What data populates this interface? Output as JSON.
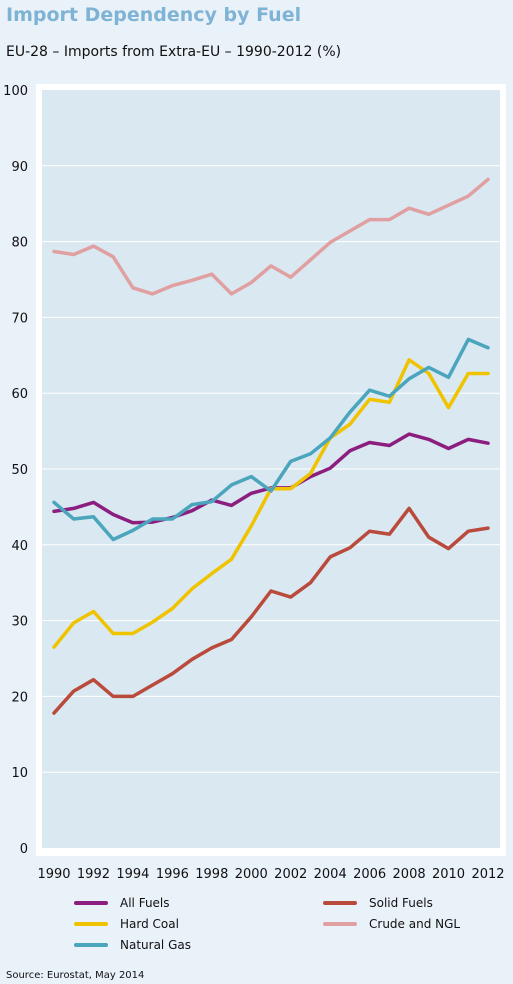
{
  "header": {
    "title": "Import Dependency by Fuel",
    "subtitle": "EU-28 – Imports from Extra-EU – 1990-2012 (%)"
  },
  "footer": {
    "source": "Source: Eurostat, May 2014"
  },
  "chart_data": {
    "type": "line",
    "title": "Import Dependency by Fuel",
    "subtitle": "EU-28 – Imports from Extra-EU – 1990-2012 (%)",
    "xlabel": "",
    "ylabel": "",
    "ylim": [
      0,
      100
    ],
    "y_ticks": [
      0,
      10,
      20,
      30,
      40,
      50,
      60,
      70,
      80,
      90,
      100
    ],
    "x_tick_labels": [
      "1990",
      "1992",
      "1994",
      "1996",
      "1998",
      "2000",
      "2002",
      "2004",
      "2006",
      "2008",
      "2010",
      "2012"
    ],
    "grid": "horizontal",
    "legend_position": "bottom",
    "plot_background": "#dae8f1",
    "x": [
      1990,
      1991,
      1992,
      1993,
      1994,
      1995,
      1996,
      1997,
      1998,
      1999,
      2000,
      2001,
      2002,
      2003,
      2004,
      2005,
      2006,
      2007,
      2008,
      2009,
      2010,
      2011,
      2012
    ],
    "series": [
      {
        "name": "All Fuels",
        "color": "#8b1e7e",
        "values": [
          44.4,
          44.8,
          45.6,
          44.0,
          42.9,
          43.0,
          43.6,
          44.5,
          45.9,
          45.2,
          46.8,
          47.5,
          47.5,
          49.0,
          50.1,
          52.4,
          53.5,
          53.1,
          54.6,
          53.9,
          52.7,
          53.9,
          53.4
        ]
      },
      {
        "name": "Solid Fuels",
        "color": "#b94a3c",
        "values": [
          17.8,
          20.7,
          22.2,
          20.0,
          20.0,
          21.5,
          23.0,
          24.9,
          26.4,
          27.5,
          30.5,
          33.9,
          33.1,
          35.0,
          38.4,
          39.6,
          41.8,
          41.4,
          44.8,
          41.0,
          39.5,
          41.8,
          42.2
        ]
      },
      {
        "name": "Hard Coal",
        "color": "#f0c300",
        "values": [
          26.5,
          29.7,
          31.2,
          28.3,
          28.3,
          29.8,
          31.6,
          34.2,
          36.2,
          38.1,
          42.5,
          47.4,
          47.4,
          49.4,
          54.1,
          55.9,
          59.2,
          58.8,
          64.4,
          62.6,
          58.1,
          62.6,
          62.6
        ]
      },
      {
        "name": "Crude and NGL",
        "color": "#e0a0a2",
        "values": [
          78.7,
          78.3,
          79.4,
          78.0,
          73.9,
          73.1,
          74.2,
          74.9,
          75.7,
          73.1,
          74.6,
          76.8,
          75.3,
          77.6,
          79.9,
          81.4,
          82.9,
          82.9,
          84.4,
          83.6,
          84.8,
          86.0,
          88.2
        ]
      },
      {
        "name": "Natural Gas",
        "color": "#4aa5bd",
        "values": [
          45.6,
          43.4,
          43.7,
          40.7,
          41.9,
          43.4,
          43.4,
          45.3,
          45.7,
          47.9,
          49.0,
          47.1,
          51.0,
          52.0,
          54.1,
          57.5,
          60.4,
          59.6,
          61.9,
          63.4,
          62.1,
          67.1,
          66.0
        ]
      }
    ]
  }
}
